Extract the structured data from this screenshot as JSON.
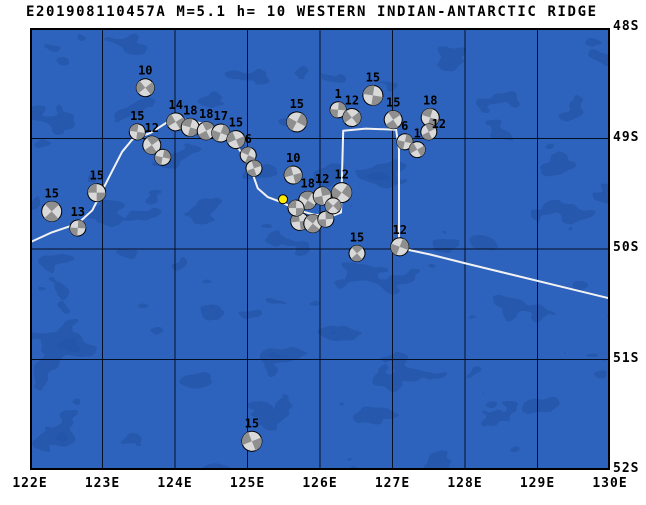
{
  "title": "E201908110457A M=5.1 h= 10 WESTERN INDIAN-ANTARCTIC RIDGE",
  "map_plot": {
    "lon_min": 122,
    "lon_max": 130,
    "lat_min": 48,
    "lat_max": 52,
    "x_ticks": [
      {
        "label": "122E",
        "value": 122
      },
      {
        "label": "123E",
        "value": 123
      },
      {
        "label": "124E",
        "value": 124
      },
      {
        "label": "125E",
        "value": 125
      },
      {
        "label": "126E",
        "value": 126
      },
      {
        "label": "127E",
        "value": 127
      },
      {
        "label": "128E",
        "value": 128
      },
      {
        "label": "129E",
        "value": 129
      },
      {
        "label": "130E",
        "value": 130
      }
    ],
    "y_ticks": [
      {
        "label": "48S",
        "value": 48
      },
      {
        "label": "49S",
        "value": 49
      },
      {
        "label": "50S",
        "value": 50
      },
      {
        "label": "51S",
        "value": 51
      },
      {
        "label": "52S",
        "value": 52
      }
    ],
    "colors": {
      "ocean": "#2d63bd",
      "ocean_patch": "#1e4c9c",
      "grid": "#050f24",
      "boundary": "#f2f2f2",
      "ball_fill": "#d9d9d9",
      "ball_shade": "#8f8f8f",
      "outline": "#000000",
      "epicenter": "#ffec00"
    },
    "plate_boundary": [
      [
        122.0,
        49.94
      ],
      [
        122.3,
        49.85
      ],
      [
        122.66,
        49.77
      ],
      [
        122.86,
        49.65
      ],
      [
        122.99,
        49.48
      ],
      [
        123.13,
        49.3
      ],
      [
        123.27,
        49.12
      ],
      [
        123.41,
        49.01
      ],
      [
        123.66,
        48.95
      ],
      [
        123.9,
        48.85
      ],
      [
        124.15,
        48.83
      ],
      [
        124.41,
        48.87
      ],
      [
        124.62,
        48.91
      ],
      [
        124.79,
        49.01
      ],
      [
        124.94,
        49.15
      ],
      [
        125.06,
        49.3
      ],
      [
        125.14,
        49.45
      ],
      [
        125.28,
        49.53
      ],
      [
        125.48,
        49.58
      ],
      [
        125.7,
        49.65
      ],
      [
        125.92,
        49.69
      ],
      [
        126.17,
        49.7
      ],
      [
        126.29,
        49.67
      ],
      [
        126.32,
        48.93
      ],
      [
        126.63,
        48.91
      ],
      [
        127.05,
        48.92
      ],
      [
        127.09,
        49.1
      ],
      [
        127.09,
        49.56
      ],
      [
        127.09,
        49.99
      ],
      [
        127.52,
        50.05
      ],
      [
        128.07,
        50.14
      ],
      [
        128.76,
        50.25
      ],
      [
        129.45,
        50.36
      ],
      [
        130.2,
        50.48
      ]
    ],
    "epicenter": {
      "lon": 125.49,
      "lat": 49.55
    },
    "mechanisms": [
      {
        "lon": 122.92,
        "lat": 49.49,
        "r": 9,
        "depth": "15"
      },
      {
        "lon": 122.3,
        "lat": 49.66,
        "r": 10,
        "depth": "15"
      },
      {
        "lon": 122.66,
        "lat": 49.81,
        "r": 8,
        "depth": "13"
      },
      {
        "lon": 123.59,
        "lat": 48.54,
        "r": 9,
        "depth": "10"
      },
      {
        "lon": 123.48,
        "lat": 48.94,
        "r": 8,
        "depth": "15"
      },
      {
        "lon": 123.68,
        "lat": 49.06,
        "r": 9,
        "depth": "12"
      },
      {
        "lon": 123.83,
        "lat": 49.17,
        "r": 8,
        "depth": ""
      },
      {
        "lon": 124.01,
        "lat": 48.85,
        "r": 9,
        "depth": "14"
      },
      {
        "lon": 124.21,
        "lat": 48.9,
        "r": 9,
        "depth": "18"
      },
      {
        "lon": 124.43,
        "lat": 48.93,
        "r": 9,
        "depth": "18"
      },
      {
        "lon": 124.63,
        "lat": 48.95,
        "r": 9,
        "depth": "17"
      },
      {
        "lon": 124.84,
        "lat": 49.01,
        "r": 9,
        "depth": "15"
      },
      {
        "lon": 125.01,
        "lat": 49.15,
        "r": 8,
        "depth": "6"
      },
      {
        "lon": 125.09,
        "lat": 49.27,
        "r": 8,
        "depth": ""
      },
      {
        "lon": 125.68,
        "lat": 48.85,
        "r": 10,
        "depth": "15"
      },
      {
        "lon": 125.63,
        "lat": 49.33,
        "r": 9,
        "depth": "10"
      },
      {
        "lon": 125.83,
        "lat": 49.56,
        "r": 9,
        "depth": "18"
      },
      {
        "lon": 126.03,
        "lat": 49.52,
        "r": 9,
        "depth": "12"
      },
      {
        "lon": 126.3,
        "lat": 49.49,
        "r": 10,
        "depth": "12"
      },
      {
        "lon": 125.72,
        "lat": 49.75,
        "r": 9,
        "depth": ""
      },
      {
        "lon": 125.9,
        "lat": 49.77,
        "r": 9,
        "depth": ""
      },
      {
        "lon": 126.08,
        "lat": 49.73,
        "r": 8,
        "depth": ""
      },
      {
        "lon": 126.18,
        "lat": 49.61,
        "r": 8,
        "depth": ""
      },
      {
        "lon": 125.67,
        "lat": 49.63,
        "r": 8,
        "depth": ""
      },
      {
        "lon": 126.51,
        "lat": 50.04,
        "r": 8,
        "depth": "15"
      },
      {
        "lon": 126.25,
        "lat": 48.74,
        "r": 8,
        "depth": "1"
      },
      {
        "lon": 126.44,
        "lat": 48.81,
        "r": 9,
        "depth": "12"
      },
      {
        "lon": 126.73,
        "lat": 48.61,
        "r": 10,
        "depth": "15"
      },
      {
        "lon": 127.01,
        "lat": 48.83,
        "r": 9,
        "depth": "15"
      },
      {
        "lon": 127.17,
        "lat": 49.03,
        "r": 8,
        "depth": "6"
      },
      {
        "lon": 127.34,
        "lat": 49.1,
        "r": 8,
        "depth": "1"
      },
      {
        "lon": 127.52,
        "lat": 48.81,
        "r": 9,
        "depth": "18"
      },
      {
        "lon": 127.5,
        "lat": 48.94,
        "r": 8,
        "depth": "12",
        "ldx": 10,
        "ldy": 8
      },
      {
        "lon": 127.1,
        "lat": 49.98,
        "r": 9,
        "depth": "12"
      },
      {
        "lon": 125.06,
        "lat": 51.74,
        "r": 10,
        "depth": "15"
      }
    ]
  }
}
